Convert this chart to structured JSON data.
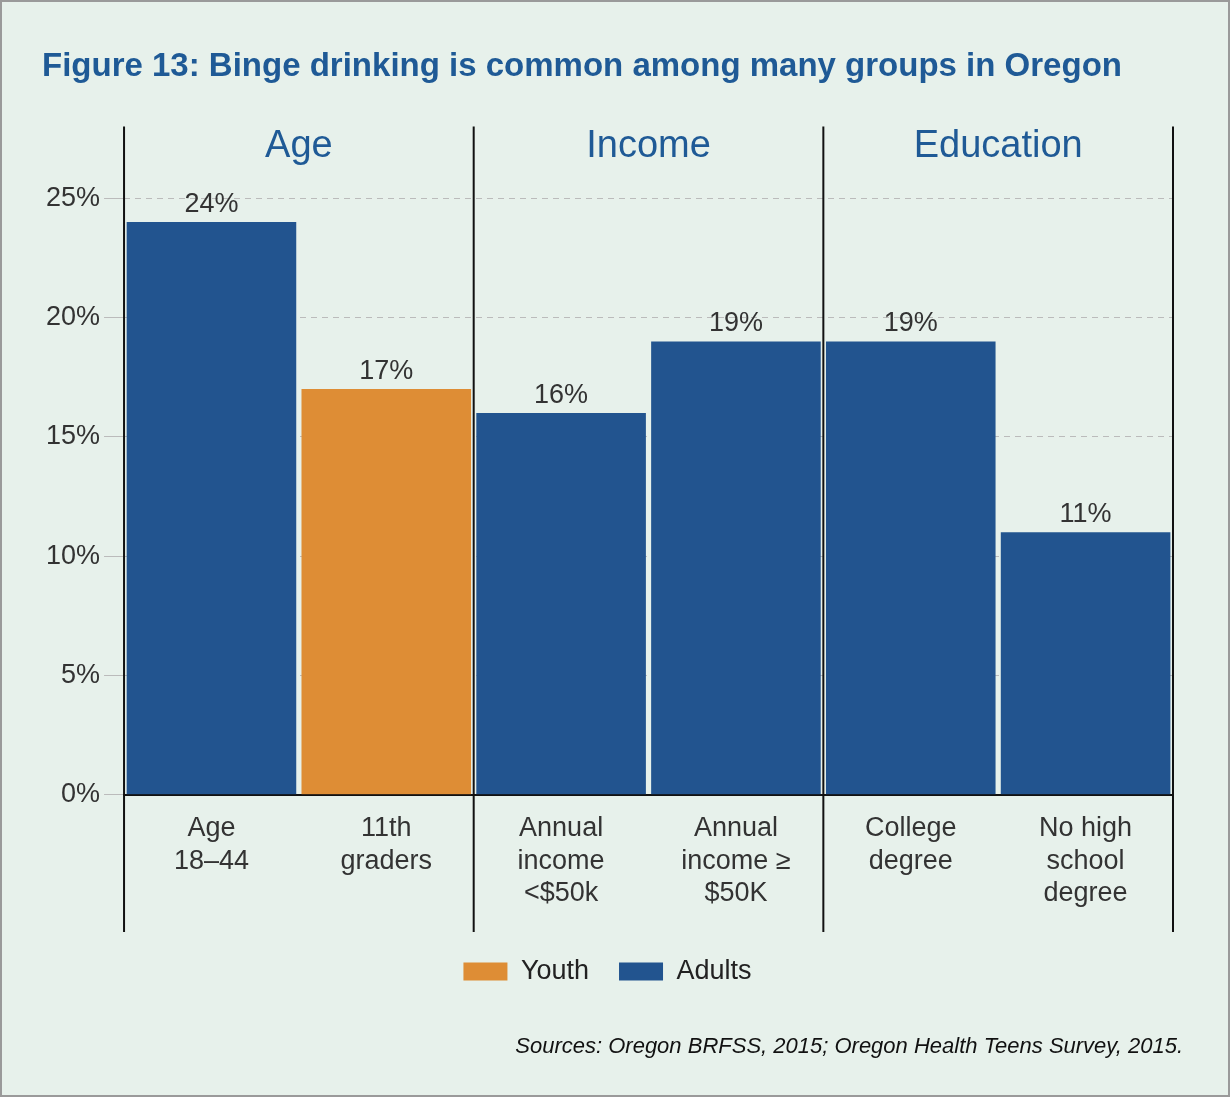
{
  "chart_data": {
    "type": "bar",
    "title": "Figure 13: Binge drinking is common among many groups in Oregon",
    "categories": [
      "Age 18–44",
      "11th graders",
      "Annual income <$50k",
      "Annual income ≥ $50K",
      "College degree",
      "No high school degree"
    ],
    "stacked": true,
    "series": [
      {
        "name": "Youth",
        "color": "#de8d35",
        "values": [
          null,
          17,
          null,
          null,
          null,
          null
        ],
        "value_labels": [
          null,
          "17%",
          null,
          null,
          null,
          null
        ]
      },
      {
        "name": "Adults",
        "color": "#22548f",
        "values": [
          24,
          null,
          16,
          19,
          19,
          11
        ],
        "value_labels": [
          "24%",
          null,
          "16%",
          "19%",
          "19%",
          "11%"
        ]
      }
    ],
    "ylim": [
      0,
      28
    ],
    "yticks": [
      {
        "value": 0,
        "label": "0%"
      },
      {
        "value": 5,
        "label": "5%"
      },
      {
        "value": 10,
        "label": "10%"
      },
      {
        "value": 15,
        "label": "15%"
      },
      {
        "value": 20,
        "label": "20%"
      },
      {
        "value": 25,
        "label": "25%"
      }
    ],
    "grid": "y",
    "legend": "bottom",
    "annotations": [
      "Age",
      "Income",
      "Education",
      "Sources: Oregon BRFSS, 2015; Oregon Health Teens Survey, 2015."
    ]
  }
}
